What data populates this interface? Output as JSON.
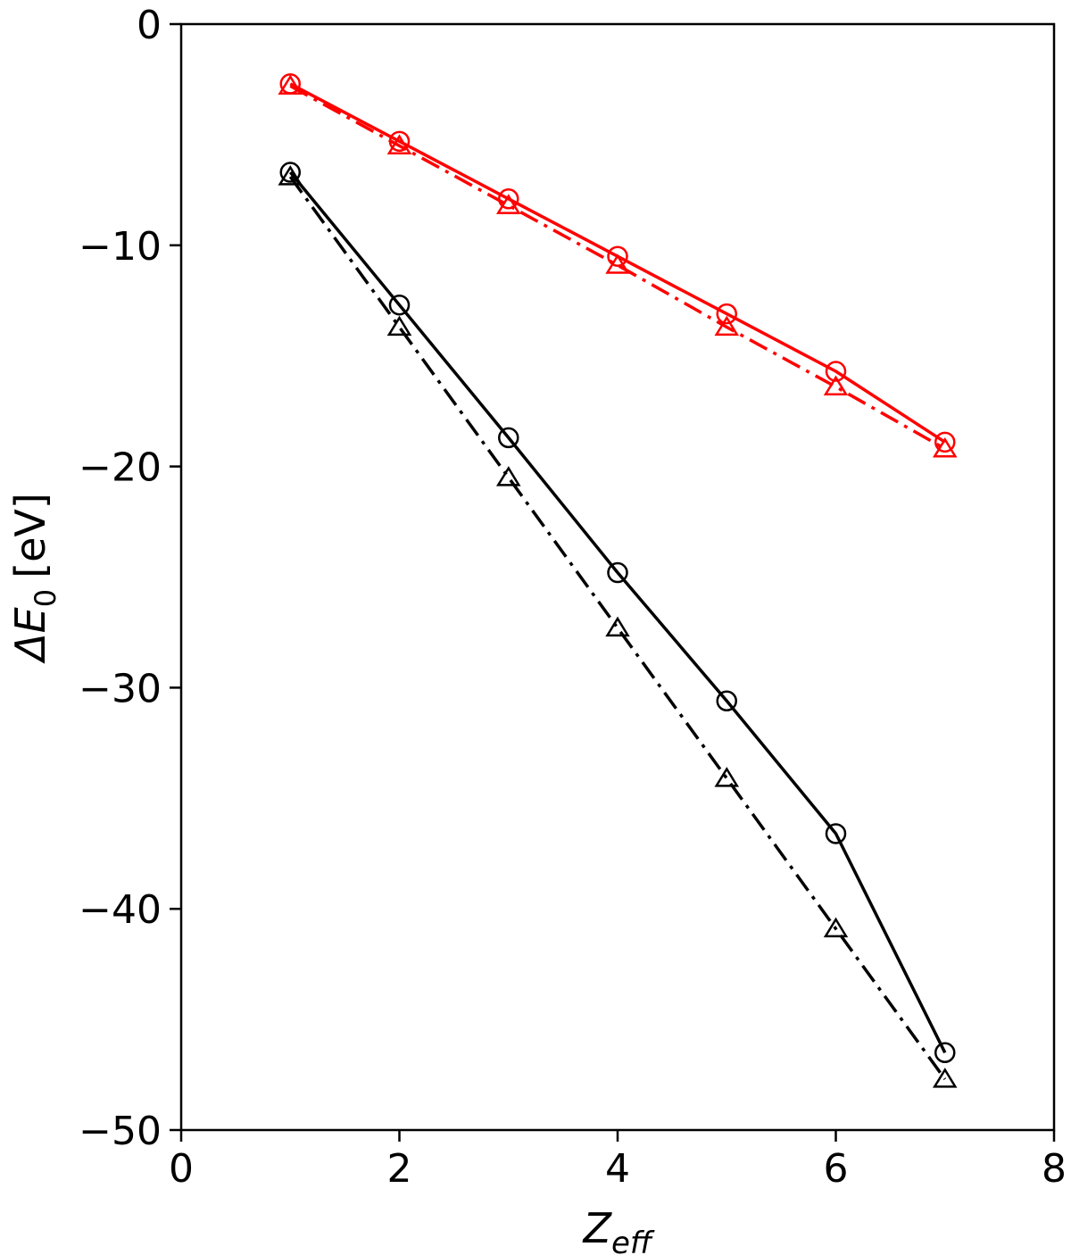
{
  "chart_data": {
    "type": "line",
    "title": "",
    "xlabel": "Z",
    "xlabel_sub": "eff",
    "ylabel": "ΔE",
    "ylabel_sub": "0",
    "ylabel_unit": "[eV]",
    "xlim": [
      0,
      8
    ],
    "ylim": [
      -50,
      0
    ],
    "xticks": [
      0,
      2,
      4,
      6,
      8
    ],
    "yticks": [
      0,
      -10,
      -20,
      -30,
      -40,
      -50
    ],
    "xtick_labels": [
      "0",
      "2",
      "4",
      "6",
      "8"
    ],
    "ytick_labels": [
      "0",
      "−10",
      "−20",
      "−30",
      "−40",
      "−50"
    ],
    "grid": false,
    "legend": "none",
    "x": [
      1,
      2,
      3,
      4,
      5,
      6,
      7
    ],
    "series": [
      {
        "color": "#ff0000",
        "line_style": "solid",
        "marker": "circle",
        "values": [
          -2.7,
          -5.3,
          -7.9,
          -10.5,
          -13.1,
          -15.7,
          -18.9
        ]
      },
      {
        "color": "#ff0000",
        "line_style": "dashdot",
        "marker": "triangle",
        "values": [
          -2.8,
          -5.5,
          -8.2,
          -10.9,
          -13.7,
          -16.4,
          -19.2
        ]
      },
      {
        "color": "#000000",
        "line_style": "solid",
        "marker": "circle",
        "values": [
          -6.7,
          -12.7,
          -18.7,
          -24.8,
          -30.6,
          -36.6,
          -46.5
        ]
      },
      {
        "color": "#000000",
        "line_style": "dashdot",
        "marker": "triangle",
        "values": [
          -6.9,
          -13.7,
          -20.5,
          -27.3,
          -34.1,
          -40.9,
          -47.7
        ]
      }
    ]
  }
}
